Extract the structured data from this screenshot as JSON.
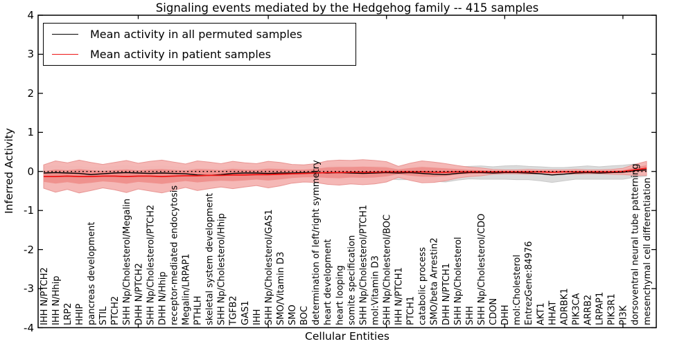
{
  "chart_data": {
    "type": "line",
    "title": "Signaling events mediated by the Hedgehog family -- 415 samples",
    "xlabel": "Cellular Entities",
    "ylabel": "Inferred Activity",
    "ylim": [
      -4,
      4
    ],
    "y_ticks": [
      "4",
      "3",
      "2",
      "1",
      "0",
      "-1",
      "-2",
      "-3",
      "-4"
    ],
    "x_major_tick_indices": [
      8,
      19,
      29,
      39,
      49
    ],
    "grid": false,
    "legend_position": "upper left",
    "zero_line": {
      "y": 0,
      "style": "dotted",
      "color": "#000000"
    },
    "categories": [
      "IHH N/PTCH2",
      "IHH N/Hhip",
      "LRP2",
      "HHIP",
      "pancreas development",
      "STIL",
      "PTCH2",
      "SHH Np/Cholesterol/Megalin",
      "DHH N/PTCH2",
      "SHH Np/Cholesterol/PTCH2",
      "DHH N/Hhip",
      "receptor-mediated endocytosis",
      "Megalin/LRPAP1",
      "PTHLH",
      "skeletal system development",
      "SHH Np/Cholesterol/Hhip",
      "TGFB2",
      "GAS1",
      "IHH",
      "SHH Np/Cholesterol/GAS1",
      "SMO/Vitamin D3",
      "SMO",
      "BOC",
      "determination of left/right symmetry",
      "heart development",
      "heart looping",
      "somite specification",
      "SHH Np/Cholesterol/PTCH1",
      "mol:Vitamin D3",
      "SHH Np/Cholesterol/BOC",
      "IHH N/PTCH1",
      "PTCH1",
      "catabolic process",
      "SMO/beta Arrestin2",
      "DHH N/PTCH1",
      "SHH Np/Cholesterol",
      "SHH",
      "SHH Np/Cholesterol/CDO",
      "CDON",
      "DHH",
      "mol:Cholesterol",
      "EntrezGene:84976",
      "AKT1",
      "HHAT",
      "ADRBK1",
      "PIK3CA",
      "ARRB2",
      "LRPAP1",
      "PIK3R1",
      "PI3K",
      "dorsoventral neural tube patterning",
      "mesenchymal cell differentiation"
    ],
    "series": [
      {
        "name": "Mean activity in all permuted samples",
        "color": "#000000",
        "values": [
          -0.04,
          -0.03,
          -0.04,
          -0.05,
          -0.08,
          -0.06,
          -0.04,
          -0.03,
          -0.04,
          -0.05,
          -0.04,
          -0.05,
          -0.06,
          -0.09,
          -0.1,
          -0.08,
          -0.05,
          -0.04,
          -0.04,
          -0.05,
          -0.04,
          -0.04,
          -0.03,
          -0.03,
          -0.04,
          -0.03,
          -0.04,
          -0.05,
          -0.04,
          -0.03,
          -0.04,
          -0.03,
          -0.05,
          -0.07,
          -0.08,
          -0.05,
          -0.03,
          -0.03,
          -0.04,
          -0.03,
          -0.03,
          -0.04,
          -0.06,
          -0.09,
          -0.07,
          -0.04,
          -0.03,
          -0.04,
          -0.03,
          -0.02,
          0.02,
          0.04
        ]
      },
      {
        "name": "Mean activity in patient samples",
        "color": "#ee1414",
        "values": [
          -0.13,
          -0.13,
          -0.12,
          -0.13,
          -0.13,
          -0.12,
          -0.12,
          -0.13,
          -0.12,
          -0.12,
          -0.13,
          -0.12,
          -0.11,
          -0.11,
          -0.1,
          -0.1,
          -0.09,
          -0.09,
          -0.08,
          -0.08,
          -0.07,
          -0.06,
          -0.05,
          -0.04,
          -0.03,
          -0.03,
          -0.02,
          -0.02,
          -0.02,
          -0.01,
          -0.01,
          -0.01,
          -0.01,
          -0.02,
          -0.02,
          -0.01,
          -0.01,
          -0.01,
          -0.01,
          -0.01,
          -0.01,
          -0.01,
          -0.01,
          -0.02,
          -0.01,
          -0.01,
          -0.01,
          -0.01,
          -0.01,
          0.0,
          0.04,
          0.08
        ]
      }
    ],
    "bands": [
      {
        "name": "permuted-samples-std",
        "center_series": 0,
        "fill": "#d9d9d9",
        "edge": "#c9c9c9",
        "half_widths": [
          0.16,
          0.17,
          0.16,
          0.18,
          0.17,
          0.16,
          0.17,
          0.18,
          0.16,
          0.17,
          0.18,
          0.17,
          0.16,
          0.17,
          0.18,
          0.17,
          0.16,
          0.16,
          0.17,
          0.18,
          0.16,
          0.16,
          0.17,
          0.16,
          0.17,
          0.18,
          0.17,
          0.16,
          0.17,
          0.16,
          0.17,
          0.18,
          0.17,
          0.18,
          0.19,
          0.17,
          0.16,
          0.17,
          0.16,
          0.17,
          0.18,
          0.17,
          0.18,
          0.19,
          0.17,
          0.16,
          0.17,
          0.16,
          0.17,
          0.18,
          0.17,
          0.16
        ]
      },
      {
        "name": "patient-samples-outer",
        "center_series": 1,
        "fill": "#f4b4b2",
        "edge": "#e89593",
        "half_widths": [
          0.3,
          0.4,
          0.34,
          0.42,
          0.36,
          0.3,
          0.35,
          0.41,
          0.33,
          0.38,
          0.42,
          0.36,
          0.3,
          0.38,
          0.34,
          0.3,
          0.35,
          0.31,
          0.28,
          0.34,
          0.3,
          0.24,
          0.22,
          0.24,
          0.3,
          0.32,
          0.3,
          0.32,
          0.3,
          0.26,
          0.14,
          0.22,
          0.28,
          0.26,
          0.22,
          0.16,
          0.12,
          0.1,
          0.06,
          0.05,
          0.05,
          0.06,
          0.05,
          0.06,
          0.05,
          0.06,
          0.05,
          0.05,
          0.06,
          0.08,
          0.14,
          0.18
        ]
      },
      {
        "name": "patient-samples-inner",
        "center_series": 1,
        "fill": "#ee8f8c",
        "edge": null,
        "half_widths_ratio_of": 1,
        "ratio": 0.45
      }
    ]
  }
}
